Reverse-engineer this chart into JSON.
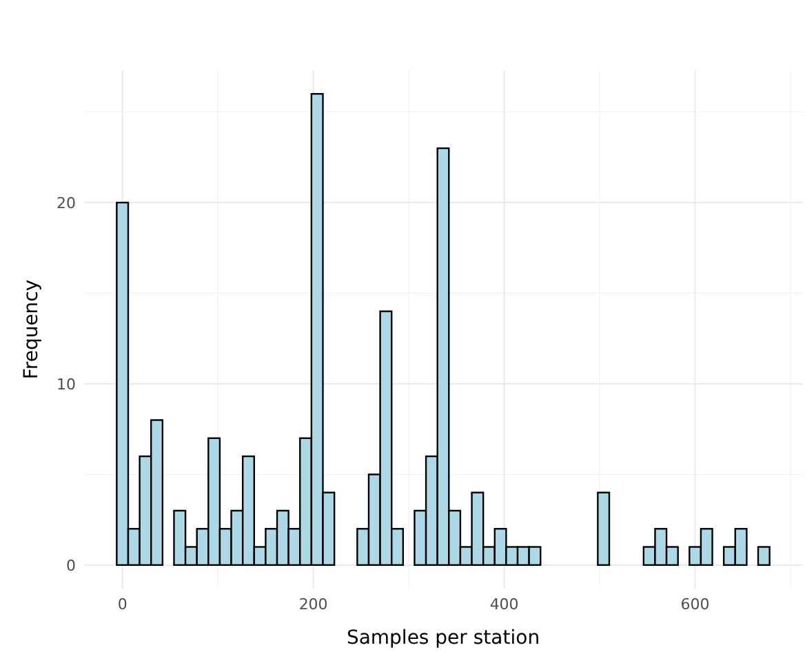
{
  "chart_data": {
    "type": "histogram",
    "xlabel": "Samples per station",
    "ylabel": "Frequency",
    "bins": [
      -6,
      6,
      18,
      30,
      42,
      54,
      66,
      78,
      90,
      102,
      114,
      126,
      138,
      150,
      162,
      174,
      186,
      198,
      210,
      222,
      234,
      246,
      258,
      270,
      282,
      294,
      306,
      318,
      330,
      342,
      354,
      366,
      378,
      390,
      402,
      414,
      426,
      438,
      450,
      462,
      474,
      486,
      498,
      510,
      522,
      534,
      546,
      558,
      570,
      582,
      594,
      606,
      618,
      630,
      642,
      654,
      666,
      678
    ],
    "values": [
      20,
      2,
      6,
      8,
      0,
      3,
      1,
      2,
      7,
      2,
      3,
      6,
      1,
      2,
      3,
      2,
      7,
      26,
      4,
      0,
      0,
      2,
      5,
      14,
      2,
      0,
      3,
      6,
      23,
      3,
      1,
      4,
      1,
      2,
      1,
      1,
      1,
      0,
      0,
      0,
      0,
      0,
      4,
      0,
      0,
      0,
      1,
      2,
      1,
      0,
      1,
      2,
      0,
      1,
      2,
      0,
      1
    ],
    "color": "#add8e6",
    "xlim": [
      -40.2,
      712.2
    ],
    "ylim": [
      -1.3,
      27.3
    ],
    "xticks": [
      0,
      200,
      400,
      600
    ],
    "yticks": [
      0,
      10,
      20
    ],
    "grid": true
  }
}
